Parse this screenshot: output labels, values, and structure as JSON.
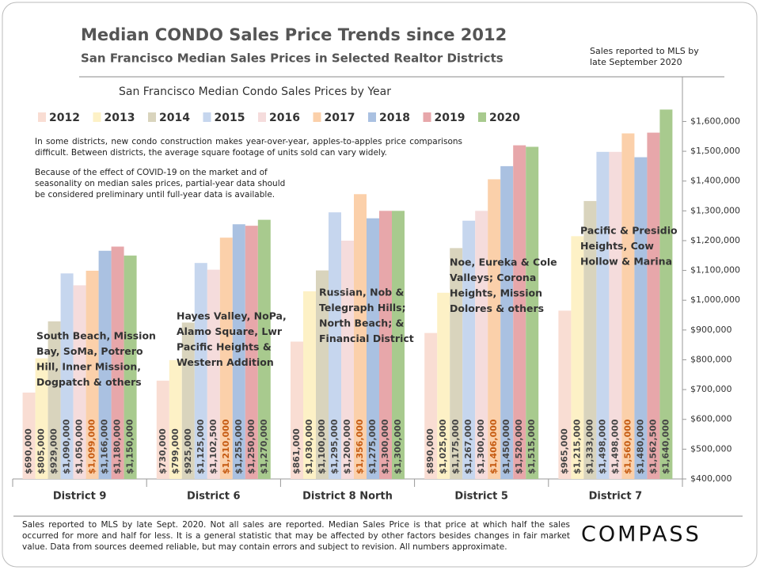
{
  "chart_data": {
    "type": "bar",
    "title": "Median CONDO Sales Price Trends since 2012",
    "subtitle": "San Francisco Median Sales Prices in Selected Realtor Districts",
    "header_note": "Sales reported to MLS by late September 2020",
    "chart_title": "San Francisco Median Condo Sales Prices by Year",
    "notes": [
      "In some districts, new condo construction makes year-over-year, apples-to-apples price comparisons difficult. Between districts, the average square footage of units sold can vary widely.",
      "Because of the effect of COVID-19 on the market and of seasonality on median sales prices, partial-year data should be considered preliminary until full-year data is available."
    ],
    "footer": "Sales reported to MLS by late Sept. 2020. Not all sales are reported. Median Sales Price is that price at which half the sales occurred for more and half for less. It is a general statistic that may be affected by other factors besides changes in fair market value. Data from sources deemed reliable, but may contain errors and subject to revision.  All numbers approximate.",
    "brand": "COMPASS",
    "categories": [
      "District 9",
      "District 6",
      "District 8 North",
      "District 5",
      "District 7"
    ],
    "annotations": [
      {
        "lines": [
          "South Beach, Mission",
          "Bay, SoMa, Potrero",
          "Hill, Inner Mission,",
          "Dogpatch & others"
        ]
      },
      {
        "lines": [
          "Hayes Valley, NoPa,",
          "Alamo Square, Lwr",
          "Pacific Heights &",
          "Western Addition"
        ]
      },
      {
        "lines": [
          "Russian, Nob &",
          "Telegraph Hills;",
          "North Beach; &",
          "Financial District"
        ]
      },
      {
        "lines": [
          "Noe, Eureka & Cole",
          "Valleys; Corona",
          "Heights, Mission",
          "Dolores & others"
        ]
      },
      {
        "lines": [
          "Pacific & Presidio",
          "Heights, Cow",
          "Hollow & Marina"
        ]
      }
    ],
    "series": [
      {
        "name": "2012",
        "color": "#f9ddd3",
        "values": [
          690000,
          730000,
          861000,
          890000,
          965000
        ],
        "value_labels": [
          "$690,000",
          "$730,000",
          "$861,000",
          "$890,000",
          "$965,000"
        ]
      },
      {
        "name": "2013",
        "color": "#fdf1c6",
        "values": [
          805000,
          799000,
          1030000,
          1025000,
          1215000
        ],
        "value_labels": [
          "$805,000",
          "$799,000",
          "$1,030,000",
          "$1,025,000",
          "$1,215,000"
        ]
      },
      {
        "name": "2014",
        "color": "#d9d4bd",
        "values": [
          929000,
          925000,
          1100000,
          1175000,
          1333000
        ],
        "value_labels": [
          "$929,000",
          "$925,000",
          "$1,100,000",
          "$1,175,000",
          "$1,333,000"
        ]
      },
      {
        "name": "2015",
        "color": "#c6d6ee",
        "values": [
          1090000,
          1125000,
          1295000,
          1267000,
          1498000
        ],
        "value_labels": [
          "$1,090,000",
          "$1,125,000",
          "$1,295,000",
          "$1,267,000",
          "$1,498,000"
        ]
      },
      {
        "name": "2016",
        "color": "#f5dcdc",
        "values": [
          1050000,
          1102500,
          1200000,
          1300000,
          1498000
        ],
        "value_labels": [
          "$1,050,000",
          "$1,102,500",
          "$1,200,000",
          "$1,300,000",
          "$1,498,000"
        ]
      },
      {
        "name": "2017",
        "color": "#fbd0aa",
        "label_color": "#c55a11",
        "values": [
          1099000,
          1210000,
          1356000,
          1406000,
          1560000
        ],
        "value_labels": [
          "$1,099,000",
          "$1,210,000",
          "$1,356,000",
          "$1,406,000",
          "$1,560,000"
        ]
      },
      {
        "name": "2018",
        "color": "#aac1e1",
        "values": [
          1166000,
          1255000,
          1275000,
          1450000,
          1480000
        ],
        "value_labels": [
          "$1,166,000",
          "$1,255,000",
          "$1,275,000",
          "$1,450,000",
          "$1,480,000"
        ]
      },
      {
        "name": "2019",
        "color": "#e7a7aa",
        "values": [
          1180000,
          1250000,
          1300000,
          1520000,
          1562500
        ],
        "value_labels": [
          "$1,180,000",
          "$1,250,000",
          "$1,300,000",
          "$1,520,000",
          "$1,562,500"
        ]
      },
      {
        "name": "2020",
        "color": "#a8ca8e",
        "values": [
          1150000,
          1270000,
          1300000,
          1515000,
          1640000
        ],
        "value_labels": [
          "$1,150,000",
          "$1,270,000",
          "$1,300,000",
          "$1,515,000",
          "$1,640,000"
        ]
      }
    ],
    "ylim": [
      400000,
      1750000
    ],
    "yticks": [
      {
        "value": 400000,
        "label": "$400,000"
      },
      {
        "value": 500000,
        "label": "$500,000"
      },
      {
        "value": 600000,
        "label": "$600,000"
      },
      {
        "value": 700000,
        "label": "$700,000"
      },
      {
        "value": 800000,
        "label": "$800,000"
      },
      {
        "value": 900000,
        "label": "$900,000"
      },
      {
        "value": 1000000,
        "label": "$1,000,000"
      },
      {
        "value": 1100000,
        "label": "$1,100,000"
      },
      {
        "value": 1200000,
        "label": "$1,200,000"
      },
      {
        "value": 1300000,
        "label": "$1,300,000"
      },
      {
        "value": 1400000,
        "label": "$1,400,000"
      },
      {
        "value": 1500000,
        "label": "$1,500,000"
      },
      {
        "value": 1600000,
        "label": "$1,600,000"
      }
    ],
    "y_axis_side": "right",
    "grid": false
  }
}
